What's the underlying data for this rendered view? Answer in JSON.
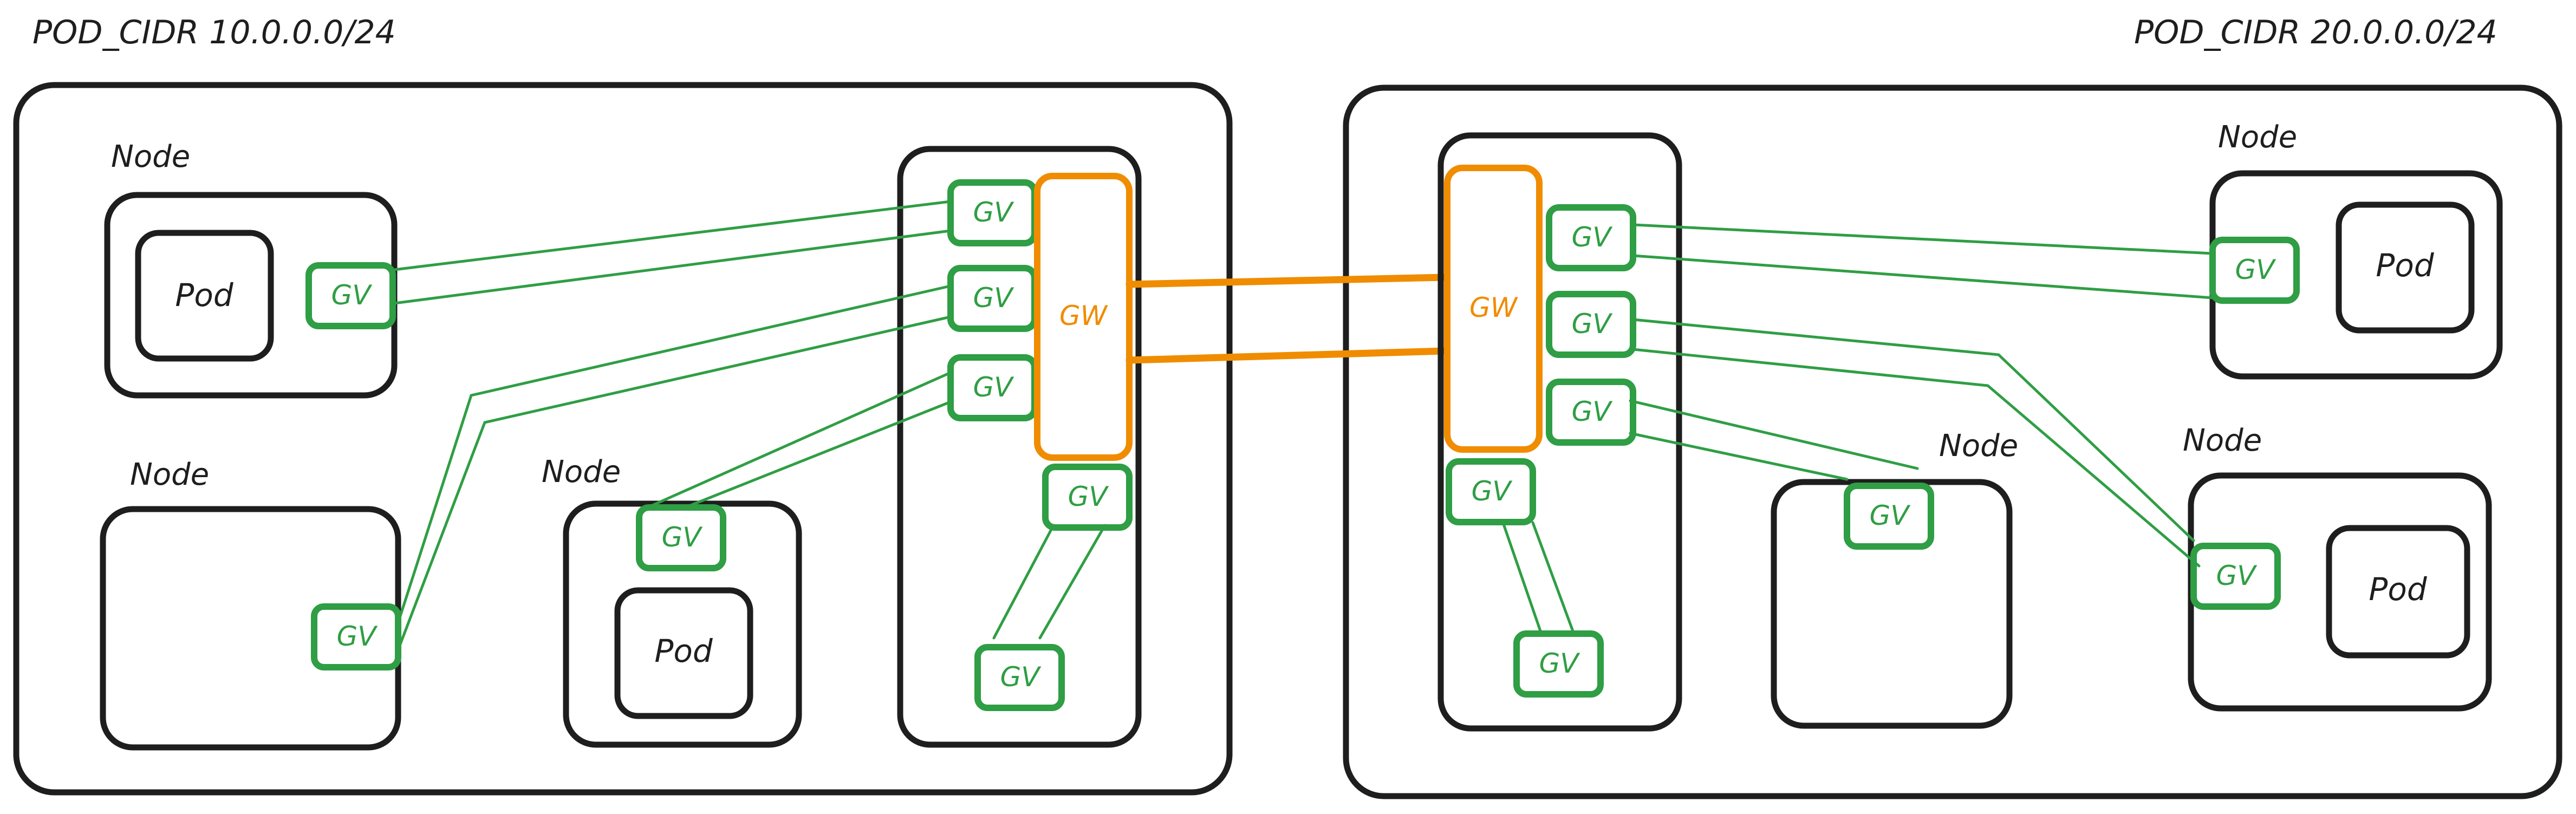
{
  "clusters": [
    {
      "pod_cidr_label": "POD_CIDR 10.0.0.0/24"
    },
    {
      "pod_cidr_label": "POD_CIDR 20.0.0.0/24"
    }
  ],
  "labels": {
    "node": "Node",
    "pod": "Pod",
    "gv": "GV",
    "gw": "GW"
  },
  "colors": {
    "outline": "#1e1e1e",
    "gv": "#2f9e44",
    "gw": "#f08c00",
    "background": "#ffffff"
  }
}
